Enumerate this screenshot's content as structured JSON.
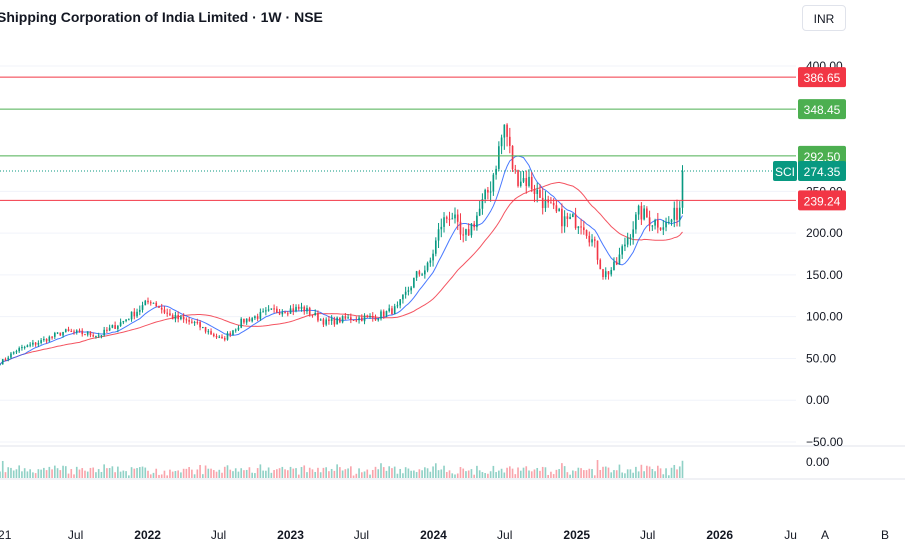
{
  "header": {
    "title": "Shipping Corporation of India Limited · 1W · NSE",
    "currency": "INR"
  },
  "colors": {
    "up": "#089981",
    "down": "#f23645",
    "ma_fast": "#2962ff",
    "ma_slow": "#f23645",
    "resistance": "#f23645",
    "support": "#4caf50",
    "grid": "#f0f3fa",
    "text": "#131722"
  },
  "price_axis": {
    "ticks": [
      "400.00",
      "250.00",
      "200.00",
      "150.00",
      "100.00",
      "50.00",
      "0.00",
      "−50.00"
    ],
    "volume_tick": "0.00"
  },
  "time_axis": {
    "ticks": [
      "21",
      "Jul",
      "2022",
      "Jul",
      "2023",
      "Jul",
      "2024",
      "Jul",
      "2025",
      "Jul",
      "2026",
      "Ju"
    ]
  },
  "scale_buttons": {
    "auto": "A",
    "log": "B"
  },
  "price_labels": {
    "symbol": "SCI",
    "last": "274.35",
    "lines": [
      {
        "value": "386.65",
        "kind": "resistance"
      },
      {
        "value": "348.45",
        "kind": "support"
      },
      {
        "value": "292.50",
        "kind": "support"
      },
      {
        "value": "239.24",
        "kind": "resistance"
      }
    ]
  },
  "chart_data": {
    "type": "candlestick",
    "title": "Shipping Corporation of India Limited · 1W · NSE",
    "ylim": [
      -50,
      400
    ],
    "xlim": [
      "2020-12-20",
      "2026-07-20"
    ],
    "horizontal_levels": [
      386.65,
      348.45,
      292.5,
      239.24
    ],
    "last_price": 274.35,
    "anchors": [
      [
        "2020-12-20",
        45
      ],
      [
        "2021-02-01",
        60
      ],
      [
        "2021-04-01",
        70
      ],
      [
        "2021-06-01",
        82
      ],
      [
        "2021-09-01",
        78
      ],
      [
        "2021-11-01",
        95
      ],
      [
        "2022-01-10",
        120
      ],
      [
        "2022-03-01",
        100
      ],
      [
        "2022-05-01",
        92
      ],
      [
        "2022-07-10",
        72
      ],
      [
        "2022-09-01",
        95
      ],
      [
        "2022-11-20",
        107
      ],
      [
        "2023-02-01",
        110
      ],
      [
        "2023-04-01",
        93
      ],
      [
        "2023-06-01",
        98
      ],
      [
        "2023-08-01",
        99
      ],
      [
        "2023-10-01",
        110
      ],
      [
        "2023-11-20",
        150
      ],
      [
        "2023-12-20",
        160
      ],
      [
        "2024-01-20",
        210
      ],
      [
        "2024-02-15",
        225
      ],
      [
        "2024-03-15",
        190
      ],
      [
        "2024-04-15",
        215
      ],
      [
        "2024-05-25",
        255
      ],
      [
        "2024-07-01",
        330
      ],
      [
        "2024-07-25",
        270
      ],
      [
        "2024-09-01",
        262
      ],
      [
        "2024-10-20",
        230
      ],
      [
        "2024-12-01",
        215
      ],
      [
        "2025-01-15",
        215
      ],
      [
        "2025-02-15",
        185
      ],
      [
        "2025-03-10",
        150
      ],
      [
        "2025-04-10",
        160
      ],
      [
        "2025-05-10",
        195
      ],
      [
        "2025-06-10",
        225
      ],
      [
        "2025-07-10",
        215
      ],
      [
        "2025-08-20",
        210
      ],
      [
        "2025-09-20",
        228
      ],
      [
        "2025-10-01",
        274
      ]
    ]
  }
}
